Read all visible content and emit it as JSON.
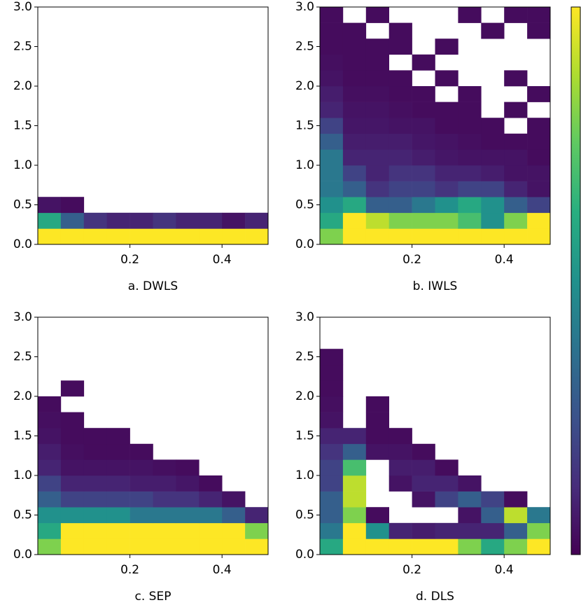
{
  "chart_data": [
    {
      "type": "heatmap",
      "title": "a. DWLS",
      "colormap": "viridis",
      "clim": [
        0,
        1
      ],
      "xlim": [
        0,
        0.5
      ],
      "ylim": [
        0,
        3
      ],
      "xticks": [
        0.2,
        0.4
      ],
      "yticks": [
        {
          "value": 0,
          "label": "0.0"
        },
        {
          "value": 0.5,
          "label": "0.5"
        },
        {
          "value": 1,
          "label": "1.0"
        },
        {
          "value": 1.5,
          "label": "1.5"
        },
        {
          "value": 2,
          "label": "2.0"
        },
        {
          "value": 2.5,
          "label": "2.5"
        },
        {
          "value": 3,
          "label": "3.0"
        }
      ],
      "xbins": [
        0,
        0.05,
        0.1,
        0.15,
        0.2,
        0.25,
        0.3,
        0.35,
        0.4,
        0.45,
        0.5
      ],
      "ybins": [
        0,
        0.2,
        0.4,
        0.6,
        0.8,
        1,
        1.2,
        1.4,
        1.6,
        1.8,
        2,
        2.2,
        2.4,
        2.6,
        2.8,
        3
      ],
      "z": [
        [
          1,
          1,
          1,
          1,
          1,
          1,
          1,
          1,
          1,
          1
        ],
        [
          0.6,
          0.3,
          0.15,
          0.1,
          0.1,
          0.15,
          0.1,
          0.1,
          0.05,
          0.1
        ],
        [
          0.05,
          0.03,
          null,
          null,
          null,
          null,
          null,
          null,
          null,
          null
        ],
        [
          null,
          null,
          null,
          null,
          null,
          null,
          null,
          null,
          null,
          null
        ],
        [
          null,
          null,
          null,
          null,
          null,
          null,
          null,
          null,
          null,
          null
        ],
        [
          null,
          null,
          null,
          null,
          null,
          null,
          null,
          null,
          null,
          null
        ],
        [
          null,
          null,
          null,
          null,
          null,
          null,
          null,
          null,
          null,
          null
        ],
        [
          null,
          null,
          null,
          null,
          null,
          null,
          null,
          null,
          null,
          null
        ],
        [
          null,
          null,
          null,
          null,
          null,
          null,
          null,
          null,
          null,
          null
        ],
        [
          null,
          null,
          null,
          null,
          null,
          null,
          null,
          null,
          null,
          null
        ],
        [
          null,
          null,
          null,
          null,
          null,
          null,
          null,
          null,
          null,
          null
        ],
        [
          null,
          null,
          null,
          null,
          null,
          null,
          null,
          null,
          null,
          null
        ],
        [
          null,
          null,
          null,
          null,
          null,
          null,
          null,
          null,
          null,
          null
        ],
        [
          null,
          null,
          null,
          null,
          null,
          null,
          null,
          null,
          null,
          null
        ],
        [
          null,
          null,
          null,
          null,
          null,
          null,
          null,
          null,
          null,
          null
        ]
      ]
    },
    {
      "type": "heatmap",
      "title": "b. IWLS",
      "colormap": "viridis",
      "clim": [
        0,
        1
      ],
      "xlim": [
        0,
        0.5
      ],
      "ylim": [
        0,
        3
      ],
      "xticks": [
        0.2,
        0.4
      ],
      "yticks": [
        {
          "value": 0,
          "label": "0.0"
        },
        {
          "value": 0.5,
          "label": "0.5"
        },
        {
          "value": 1,
          "label": "1.0"
        },
        {
          "value": 1.5,
          "label": "1.5"
        },
        {
          "value": 2,
          "label": "2.0"
        },
        {
          "value": 2.5,
          "label": "2.5"
        },
        {
          "value": 3,
          "label": "3.0"
        }
      ],
      "xbins": [
        0,
        0.05,
        0.1,
        0.15,
        0.2,
        0.25,
        0.3,
        0.35,
        0.4,
        0.45,
        0.5
      ],
      "ybins": [
        0,
        0.2,
        0.4,
        0.6,
        0.8,
        1,
        1.2,
        1.4,
        1.6,
        1.8,
        2,
        2.2,
        2.4,
        2.6,
        2.8,
        3
      ],
      "z": [
        [
          0.8,
          1,
          1,
          1,
          1,
          1,
          1,
          1,
          1,
          1
        ],
        [
          0.6,
          1,
          0.9,
          0.8,
          0.8,
          0.8,
          0.7,
          0.5,
          0.8,
          1
        ],
        [
          0.5,
          0.6,
          0.3,
          0.3,
          0.4,
          0.5,
          0.6,
          0.5,
          0.3,
          0.2
        ],
        [
          0.4,
          0.3,
          0.15,
          0.2,
          0.2,
          0.15,
          0.2,
          0.2,
          0.1,
          0.05
        ],
        [
          0.4,
          0.2,
          0.1,
          0.15,
          0.15,
          0.1,
          0.1,
          0.08,
          0.05,
          0.05
        ],
        [
          0.4,
          0.1,
          0.1,
          0.1,
          0.08,
          0.06,
          0.05,
          0.05,
          0.05,
          0.03
        ],
        [
          0.3,
          0.08,
          0.08,
          0.08,
          0.06,
          0.05,
          0.04,
          0.03,
          0.03,
          0.03
        ],
        [
          0.2,
          0.06,
          0.06,
          0.05,
          0.05,
          0.03,
          0.03,
          0.03,
          null,
          0.03
        ],
        [
          0.1,
          0.05,
          0.05,
          0.04,
          0.03,
          0.03,
          0.03,
          null,
          0.03,
          null
        ],
        [
          0.08,
          0.04,
          0.04,
          0.03,
          0.03,
          null,
          0.03,
          null,
          null,
          0.03
        ],
        [
          0.05,
          0.03,
          0.03,
          0.03,
          null,
          0.03,
          null,
          null,
          0.03,
          null
        ],
        [
          0.04,
          0.03,
          0.03,
          null,
          0.03,
          null,
          null,
          null,
          null,
          null
        ],
        [
          0.03,
          0.03,
          0.03,
          0.03,
          null,
          0.03,
          null,
          null,
          null,
          null
        ],
        [
          0.03,
          0.03,
          null,
          0.03,
          null,
          null,
          null,
          0.03,
          null,
          0.03
        ],
        [
          0.03,
          null,
          0.03,
          null,
          null,
          null,
          0.03,
          null,
          0.03,
          0.03
        ]
      ]
    },
    {
      "type": "heatmap",
      "title": "c. SEP",
      "colormap": "viridis",
      "clim": [
        0,
        1
      ],
      "xlim": [
        0,
        0.5
      ],
      "ylim": [
        0,
        3
      ],
      "xticks": [
        0.2,
        0.4
      ],
      "yticks": [
        {
          "value": 0,
          "label": "0.0"
        },
        {
          "value": 0.5,
          "label": "0.5"
        },
        {
          "value": 1,
          "label": "1.0"
        },
        {
          "value": 1.5,
          "label": "1.5"
        },
        {
          "value": 2,
          "label": "2.0"
        },
        {
          "value": 2.5,
          "label": "2.5"
        },
        {
          "value": 3,
          "label": "3.0"
        }
      ],
      "xbins": [
        0,
        0.05,
        0.1,
        0.15,
        0.2,
        0.25,
        0.3,
        0.35,
        0.4,
        0.45,
        0.5
      ],
      "ybins": [
        0,
        0.2,
        0.4,
        0.6,
        0.8,
        1,
        1.2,
        1.4,
        1.6,
        1.8,
        2,
        2.2,
        2.4,
        2.6,
        2.8,
        3
      ],
      "z": [
        [
          0.8,
          1,
          1,
          1,
          1,
          1,
          1,
          1,
          1,
          1
        ],
        [
          0.6,
          1,
          1,
          1,
          1,
          1,
          1,
          1,
          1,
          0.8
        ],
        [
          0.5,
          0.5,
          0.5,
          0.5,
          0.4,
          0.4,
          0.4,
          0.4,
          0.3,
          0.1
        ],
        [
          0.3,
          0.2,
          0.2,
          0.2,
          0.2,
          0.15,
          0.15,
          0.1,
          0.05,
          null
        ],
        [
          0.2,
          0.1,
          0.1,
          0.1,
          0.08,
          0.08,
          0.06,
          0.03,
          null,
          null
        ],
        [
          0.1,
          0.05,
          0.05,
          0.05,
          0.05,
          0.04,
          0.03,
          null,
          null,
          null
        ],
        [
          0.08,
          0.04,
          0.03,
          0.03,
          0.03,
          null,
          null,
          null,
          null,
          null
        ],
        [
          0.05,
          0.03,
          0.03,
          0.03,
          null,
          null,
          null,
          null,
          null,
          null
        ],
        [
          0.04,
          0.03,
          null,
          null,
          null,
          null,
          null,
          null,
          null,
          null
        ],
        [
          0.03,
          null,
          null,
          null,
          null,
          null,
          null,
          null,
          null,
          null
        ],
        [
          null,
          0.03,
          null,
          null,
          null,
          null,
          null,
          null,
          null,
          null
        ],
        [
          null,
          null,
          null,
          null,
          null,
          null,
          null,
          null,
          null,
          null
        ],
        [
          null,
          null,
          null,
          null,
          null,
          null,
          null,
          null,
          null,
          null
        ],
        [
          null,
          null,
          null,
          null,
          null,
          null,
          null,
          null,
          null,
          null
        ],
        [
          null,
          null,
          null,
          null,
          null,
          null,
          null,
          null,
          null,
          null
        ]
      ]
    },
    {
      "type": "heatmap",
      "title": "d. DLS",
      "colormap": "viridis",
      "clim": [
        0,
        1
      ],
      "xlim": [
        0,
        0.5
      ],
      "ylim": [
        0,
        3
      ],
      "xticks": [
        0.2,
        0.4
      ],
      "yticks": [
        {
          "value": 0,
          "label": "0.0"
        },
        {
          "value": 0.5,
          "label": "0.5"
        },
        {
          "value": 1,
          "label": "1.0"
        },
        {
          "value": 1.5,
          "label": "1.5"
        },
        {
          "value": 2,
          "label": "2.0"
        },
        {
          "value": 2.5,
          "label": "2.5"
        },
        {
          "value": 3,
          "label": "3.0"
        }
      ],
      "xbins": [
        0,
        0.05,
        0.1,
        0.15,
        0.2,
        0.25,
        0.3,
        0.35,
        0.4,
        0.45,
        0.5
      ],
      "ybins": [
        0,
        0.2,
        0.4,
        0.6,
        0.8,
        1,
        1.2,
        1.4,
        1.6,
        1.8,
        2,
        2.2,
        2.4,
        2.6,
        2.8,
        3
      ],
      "z": [
        [
          0.6,
          1,
          1,
          1,
          1,
          1,
          0.8,
          0.6,
          0.8,
          1
        ],
        [
          0.4,
          1,
          0.5,
          0.1,
          0.08,
          0.1,
          0.1,
          0.1,
          0.3,
          0.8
        ],
        [
          0.3,
          0.8,
          0.03,
          null,
          null,
          null,
          0.05,
          0.3,
          0.9,
          0.4
        ],
        [
          0.3,
          0.9,
          null,
          null,
          0.05,
          0.2,
          0.3,
          0.2,
          0.03,
          null
        ],
        [
          0.2,
          0.9,
          null,
          0.05,
          0.1,
          0.1,
          0.05,
          null,
          null,
          null
        ],
        [
          0.2,
          0.7,
          null,
          0.08,
          0.08,
          0.03,
          null,
          null,
          null,
          null
        ],
        [
          0.15,
          0.3,
          0.05,
          0.05,
          0.03,
          null,
          null,
          null,
          null,
          null
        ],
        [
          0.1,
          0.1,
          0.03,
          0.03,
          null,
          null,
          null,
          null,
          null,
          null
        ],
        [
          0.05,
          null,
          0.03,
          null,
          null,
          null,
          null,
          null,
          null,
          null
        ],
        [
          0.04,
          null,
          0.03,
          null,
          null,
          null,
          null,
          null,
          null,
          null
        ],
        [
          0.03,
          null,
          null,
          null,
          null,
          null,
          null,
          null,
          null,
          null
        ],
        [
          0.03,
          null,
          null,
          null,
          null,
          null,
          null,
          null,
          null,
          null
        ],
        [
          0.03,
          null,
          null,
          null,
          null,
          null,
          null,
          null,
          null,
          null
        ],
        [
          null,
          null,
          null,
          null,
          null,
          null,
          null,
          null,
          null,
          null
        ],
        [
          null,
          null,
          null,
          null,
          null,
          null,
          null,
          null,
          null,
          null
        ]
      ]
    }
  ]
}
